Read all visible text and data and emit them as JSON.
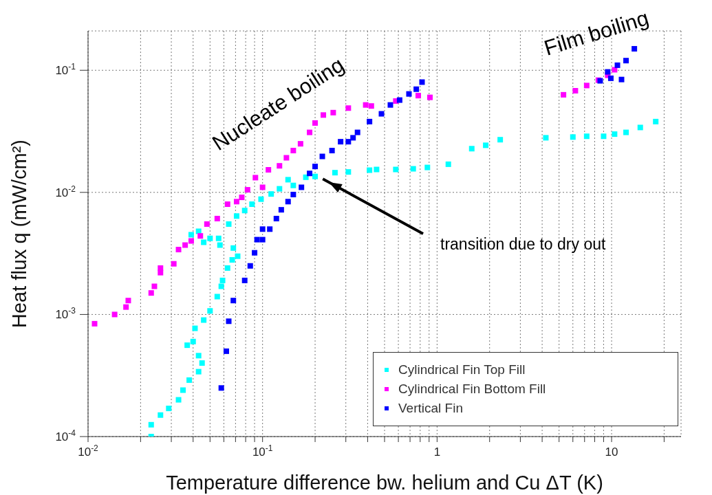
{
  "chart_data": {
    "type": "scatter",
    "xlabel": "Temperature difference bw. helium and Cu  ΔT (K)",
    "ylabel": "Heat flux q (mW/cm²)",
    "log": "xy",
    "xlim": [
      0.01,
      25
    ],
    "ylim": [
      0.0001,
      0.21
    ],
    "xticks": [
      {
        "value": 0.01,
        "label": "10$^{-2}$"
      },
      {
        "value": 0.02,
        "label": null
      },
      {
        "value": 0.03,
        "label": null
      },
      {
        "value": 0.04,
        "label": null
      },
      {
        "value": 0.05,
        "label": null
      },
      {
        "value": 0.06,
        "label": null
      },
      {
        "value": 0.07,
        "label": null
      },
      {
        "value": 0.08,
        "label": null
      },
      {
        "value": 0.09,
        "label": null
      },
      {
        "value": 0.1,
        "label": "10$^{-1}$"
      },
      {
        "value": 0.2,
        "label": null
      },
      {
        "value": 0.3,
        "label": null
      },
      {
        "value": 0.4,
        "label": null
      },
      {
        "value": 0.5,
        "label": null
      },
      {
        "value": 0.6,
        "label": null
      },
      {
        "value": 0.7,
        "label": null
      },
      {
        "value": 0.8,
        "label": null
      },
      {
        "value": 0.9,
        "label": null
      },
      1,
      {
        "value": 2,
        "label": null
      },
      {
        "value": 3,
        "label": null
      },
      {
        "value": 4,
        "label": null
      },
      {
        "value": 5,
        "label": null
      },
      {
        "value": 6,
        "label": null
      },
      {
        "value": 7,
        "label": null
      },
      {
        "value": 8,
        "label": null
      },
      {
        "value": 9,
        "label": null
      },
      10,
      {
        "value": 20,
        "label": null
      }
    ],
    "yticks": [
      {
        "value": 0.0001,
        "label": "10$^{-4}$"
      },
      {
        "value": 0.001,
        "label": "10$^{-3}$"
      },
      {
        "value": 0.01,
        "label": "10$^{-2}$"
      },
      {
        "value": 0.1,
        "label": "10$^{-1}$"
      }
    ],
    "grid": true,
    "legend": "bottom right",
    "marker": "square",
    "annotations": [
      "Nucleate boiling",
      "Film boiling",
      "transition due to dry out"
    ],
    "series": [
      {
        "name": "Cylindrical Fin Top Fill",
        "color": "#00ffff",
        "x": [
          0.023,
          0.023,
          0.026,
          0.029,
          0.033,
          0.035,
          0.038,
          0.043,
          0.045,
          0.043,
          0.037,
          0.04,
          0.041,
          0.046,
          0.05,
          0.055,
          0.058,
          0.059,
          0.063,
          0.067,
          0.072,
          0.068,
          0.057,
          0.056,
          0.039,
          0.043,
          0.046,
          0.05,
          0.064,
          0.071,
          0.079,
          0.087,
          0.098,
          0.112,
          0.125,
          0.14,
          0.15,
          0.177,
          0.2,
          0.26,
          0.31,
          0.41,
          0.45,
          0.58,
          0.73,
          0.88,
          1.16,
          1.58,
          1.9,
          2.3,
          4.2,
          6,
          7.2,
          9,
          10.4,
          12.1,
          14.6,
          17.9
        ],
        "values": [
          0.0001,
          0.000125,
          0.00015,
          0.00017,
          0.0002,
          0.00024,
          0.00029,
          0.00034,
          0.0004,
          0.00046,
          0.00056,
          0.0006,
          0.00077,
          0.0009,
          0.00107,
          0.0014,
          0.0017,
          0.0019,
          0.0024,
          0.0028,
          0.003,
          0.0035,
          0.0037,
          0.0042,
          0.0045,
          0.0048,
          0.0039,
          0.0042,
          0.0055,
          0.0064,
          0.0071,
          0.008,
          0.0088,
          0.0097,
          0.0107,
          0.0127,
          0.0114,
          0.0133,
          0.0135,
          0.0145,
          0.0147,
          0.0152,
          0.0154,
          0.0154,
          0.0156,
          0.016,
          0.017,
          0.0228,
          0.0243,
          0.027,
          0.028,
          0.0284,
          0.0288,
          0.0288,
          0.03,
          0.031,
          0.034,
          0.038
        ]
      },
      {
        "name": "Cylindrical Fin Bottom Fill",
        "color": "#ff00ff",
        "x": [
          0.0109,
          0.0142,
          0.0165,
          0.017,
          0.023,
          0.024,
          0.026,
          0.026,
          0.031,
          0.033,
          0.036,
          0.039,
          0.044,
          0.048,
          0.055,
          0.063,
          0.071,
          0.076,
          0.082,
          0.091,
          0.1,
          0.108,
          0.125,
          0.137,
          0.15,
          0.165,
          0.186,
          0.2,
          0.223,
          0.254,
          0.31,
          0.39,
          0.42,
          0.58,
          0.78,
          0.91,
          5.3,
          6.2,
          7.2,
          8.4,
          9.5,
          10.4
        ],
        "values": [
          0.00084,
          0.001,
          0.00115,
          0.0013,
          0.0015,
          0.0017,
          0.0022,
          0.0024,
          0.0026,
          0.0034,
          0.0037,
          0.004,
          0.0044,
          0.0055,
          0.0061,
          0.008,
          0.0084,
          0.0091,
          0.0105,
          0.0132,
          0.011,
          0.0153,
          0.0165,
          0.0192,
          0.022,
          0.025,
          0.031,
          0.037,
          0.043,
          0.045,
          0.049,
          0.052,
          0.051,
          0.056,
          0.062,
          0.06,
          0.063,
          0.068,
          0.075,
          0.083,
          0.091,
          0.101
        ]
      },
      {
        "name": "Vertical Fin",
        "color": "#0000ff",
        "x": [
          0.058,
          0.062,
          0.064,
          0.068,
          0.079,
          0.085,
          0.09,
          0.093,
          0.1,
          0.1,
          0.11,
          0.12,
          0.128,
          0.14,
          0.15,
          0.167,
          0.186,
          0.2,
          0.22,
          0.25,
          0.28,
          0.31,
          0.33,
          0.35,
          0.41,
          0.48,
          0.54,
          0.61,
          0.69,
          0.76,
          0.82,
          8.6,
          9.5,
          9.9,
          10.8,
          11.4,
          12.1,
          13.5
        ],
        "values": [
          0.00025,
          0.0005,
          0.00088,
          0.0013,
          0.0019,
          0.0025,
          0.0032,
          0.0041,
          0.0041,
          0.005,
          0.005,
          0.0061,
          0.0072,
          0.0084,
          0.0096,
          0.011,
          0.0143,
          0.0163,
          0.0197,
          0.022,
          0.026,
          0.026,
          0.028,
          0.031,
          0.038,
          0.044,
          0.052,
          0.057,
          0.064,
          0.07,
          0.08,
          0.082,
          0.097,
          0.086,
          0.11,
          0.084,
          0.12,
          0.15
        ]
      }
    ]
  }
}
